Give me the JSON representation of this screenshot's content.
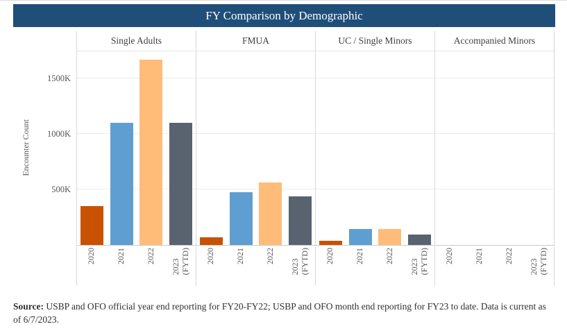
{
  "title": "FY Comparison by Demographic",
  "colors": {
    "title_bar_bg": "#1F4E79",
    "title_text": "#FFFFFF",
    "separator": "#D8D8D8",
    "gridline": "#ECECEC",
    "axis_line": "#C9C9C9",
    "header_text": "#404040",
    "label_text": "#555555"
  },
  "y_axis": {
    "label": "Encounter Count",
    "ticks": {
      "t1500": "1500K",
      "t1000": "1000K",
      "t500": "500K"
    }
  },
  "x_axis": {
    "categories": [
      "2020",
      "2021",
      "2022",
      "2023\n(FYTD)"
    ]
  },
  "chart_data": {
    "type": "bar",
    "title": "FY Comparison by Demographic",
    "ylabel": "Encounter Count",
    "unit": "thousands (K)",
    "ylim": [
      0,
      1750
    ],
    "grid": true,
    "yticks": [
      500,
      1000,
      1500
    ],
    "categories": [
      "2020",
      "2021",
      "2022",
      "2023 (FYTD)"
    ],
    "series_colors": [
      "#C85200",
      "#5F9ED1",
      "#FFBC79",
      "#59626F"
    ],
    "panels": [
      {
        "name": "Single Adults",
        "values": [
          355,
          1110,
          1680,
          1110
        ]
      },
      {
        "name": "FMUA",
        "values": [
          70,
          480,
          565,
          445
        ]
      },
      {
        "name": "UC / Single Minors",
        "values": [
          40,
          150,
          150,
          100
        ]
      },
      {
        "name": "Accompanied Minors",
        "values": [
          2,
          4,
          4,
          2
        ]
      }
    ]
  },
  "source": {
    "label": "Source:",
    "text": "USBP and OFO official year end reporting for FY20-FY22; USBP and OFO month end reporting for FY23 to date. Data is current as of 6/7/2023."
  }
}
